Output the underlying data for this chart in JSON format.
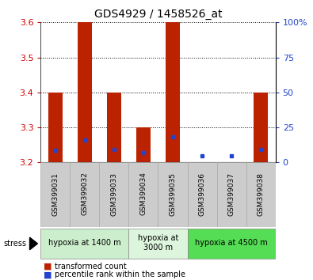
{
  "title": "GDS4929 / 1458526_at",
  "samples": [
    "GSM399031",
    "GSM399032",
    "GSM399033",
    "GSM399034",
    "GSM399035",
    "GSM399036",
    "GSM399037",
    "GSM399038"
  ],
  "bar_base": 3.2,
  "bar_tops": [
    3.4,
    3.6,
    3.4,
    3.3,
    3.6,
    3.2,
    3.2,
    3.4
  ],
  "blue_y": [
    3.235,
    3.265,
    3.237,
    3.228,
    3.272,
    3.218,
    3.218,
    3.237
  ],
  "ylim": [
    3.2,
    3.6
  ],
  "yticks_left": [
    3.2,
    3.3,
    3.4,
    3.5,
    3.6
  ],
  "yticks_right": [
    0,
    25,
    50,
    75,
    100
  ],
  "bar_color": "#bb2200",
  "blue_color": "#2244cc",
  "groups": [
    {
      "label": "hypoxia at 1400 m",
      "start": 0,
      "end": 3,
      "color": "#cceecc"
    },
    {
      "label": "hypoxia at\n3000 m",
      "start": 3,
      "end": 5,
      "color": "#ddf5dd"
    },
    {
      "label": "hypoxia at 4500 m",
      "start": 5,
      "end": 8,
      "color": "#55dd55"
    }
  ],
  "legend_entries": [
    "transformed count",
    "percentile rank within the sample"
  ],
  "bar_width": 0.5,
  "tick_bg": "#cccccc",
  "right_axis_color": "#2244cc",
  "left_axis_color": "#cc0000"
}
